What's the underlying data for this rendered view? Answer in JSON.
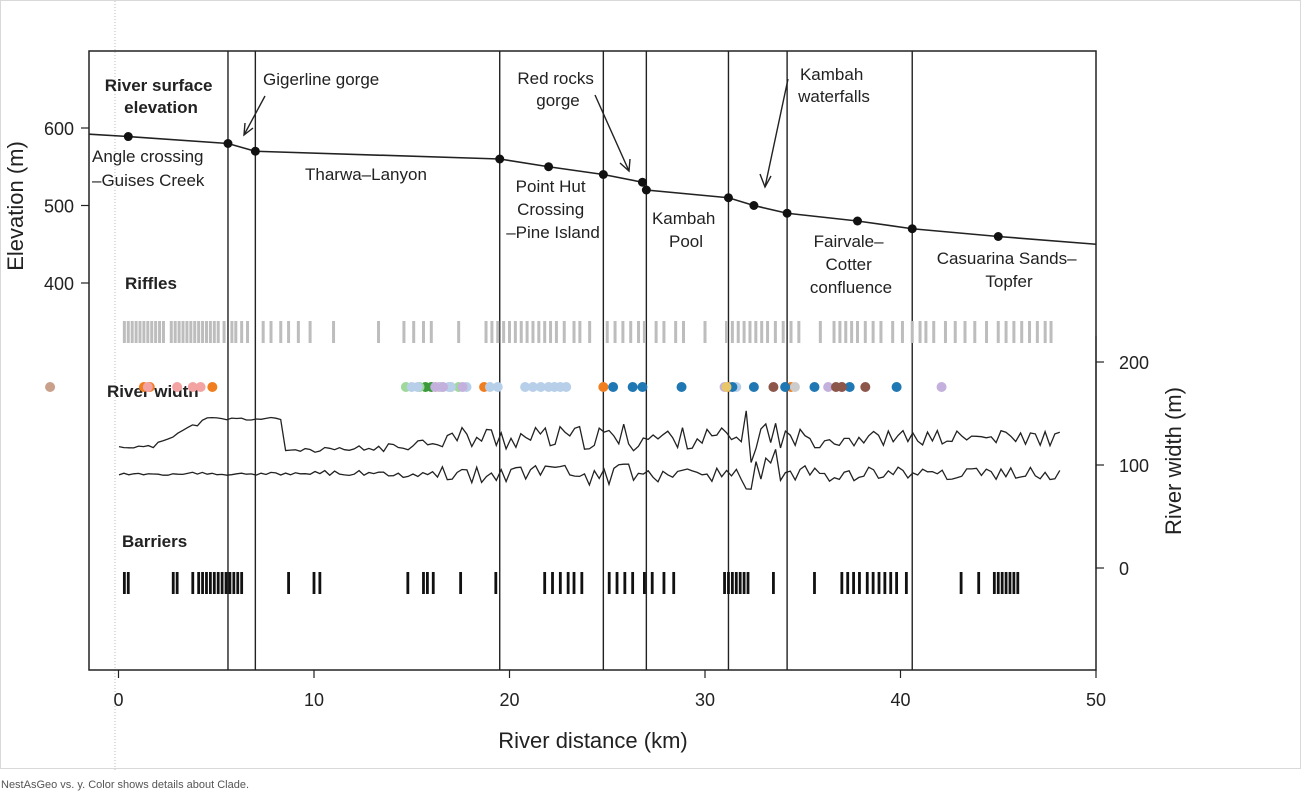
{
  "caption": "NestAsGeo vs. y.  Color shows details about Clade.",
  "chart_data": {
    "type": "line",
    "xlabel": "River distance (km)",
    "ylabel_left": "Elevation (m)",
    "ylabel_right": "River width (m)",
    "xlim": [
      -1.5,
      50
    ],
    "x_ticks": [
      0,
      10,
      20,
      30,
      40,
      50
    ],
    "y_left_ticks": [
      400,
      500,
      600
    ],
    "y_right_ticks": [
      0,
      100,
      200
    ],
    "elevation_series": {
      "x": [
        -1.5,
        0.5,
        5.6,
        7.0,
        19.5,
        22.0,
        24.8,
        26.8,
        27.0,
        31.2,
        32.5,
        34.2,
        37.8,
        40.6,
        45.0,
        50.0
      ],
      "y": [
        592,
        589,
        580,
        570,
        560,
        550,
        540,
        530,
        520,
        510,
        500,
        490,
        480,
        470,
        460,
        450
      ],
      "marker_x": [
        0.5,
        5.6,
        7.0,
        19.5,
        22.0,
        24.8,
        26.8,
        27.0,
        31.2,
        32.5,
        34.2,
        37.8,
        40.6,
        45.0
      ]
    },
    "section_boundaries_km": [
      5.6,
      7.0,
      19.5,
      24.8,
      27.0,
      31.2,
      34.2,
      40.6
    ],
    "annotations": {
      "river_surface": [
        "River surface",
        "elevation"
      ],
      "gigerline": "Gigerline gorge",
      "red_rocks": [
        "Red rocks",
        "gorge"
      ],
      "kambah_waterfalls": [
        "Kambah",
        "waterfalls"
      ],
      "angle_crossing": [
        "Angle crossing",
        "–Guises Creek"
      ],
      "tharwa": "Tharwa–Lanyon",
      "point_hut": [
        "Point Hut",
        "Crossing",
        "–Pine Island"
      ],
      "kambah_pool": [
        "Kambah",
        "Pool"
      ],
      "fairvale": [
        "Fairvale–",
        "Cotter",
        "confluence"
      ],
      "casuarina": [
        "Casuarina Sands–",
        "Topfer"
      ],
      "riffles": "Riffles",
      "river_width": "River width",
      "barriers": "Barriers"
    },
    "riffles_km": [
      0.3,
      0.5,
      0.7,
      0.9,
      1.1,
      1.3,
      1.5,
      1.7,
      1.9,
      2.1,
      2.3,
      2.7,
      2.9,
      3.1,
      3.3,
      3.5,
      3.7,
      3.9,
      4.1,
      4.3,
      4.5,
      4.7,
      4.9,
      5.1,
      5.4,
      5.8,
      6.0,
      6.3,
      6.6,
      7.4,
      7.8,
      8.3,
      8.7,
      9.2,
      9.8,
      11.0,
      13.3,
      14.6,
      15.1,
      15.6,
      16.0,
      17.4,
      18.8,
      19.1,
      19.4,
      19.7,
      20.0,
      20.3,
      20.6,
      20.9,
      21.2,
      21.5,
      21.8,
      22.1,
      22.4,
      22.8,
      23.3,
      23.6,
      24.1,
      25.0,
      25.4,
      25.8,
      26.2,
      26.6,
      26.9,
      27.5,
      27.9,
      28.5,
      28.9,
      30.0,
      31.1,
      31.4,
      31.7,
      32.0,
      32.3,
      32.6,
      32.9,
      33.2,
      33.6,
      34.0,
      34.4,
      34.8,
      35.9,
      36.6,
      36.9,
      37.2,
      37.5,
      37.8,
      38.2,
      38.6,
      39.0,
      39.6,
      40.1,
      40.6,
      41.0,
      41.3,
      41.7,
      42.3,
      42.8,
      43.3,
      43.8,
      44.4,
      45.0,
      45.4,
      45.8,
      46.2,
      46.6,
      47.0,
      47.4,
      47.7
    ],
    "barriers_km": [
      0.3,
      0.5,
      2.8,
      3.0,
      3.8,
      4.1,
      4.3,
      4.5,
      4.7,
      4.9,
      5.1,
      5.3,
      5.5,
      5.7,
      5.9,
      6.1,
      6.3,
      8.7,
      10.0,
      10.3,
      14.8,
      15.6,
      15.8,
      16.1,
      17.5,
      19.3,
      21.8,
      22.2,
      22.6,
      23.0,
      23.3,
      23.7,
      25.1,
      25.5,
      25.9,
      26.3,
      26.9,
      27.3,
      27.9,
      28.4,
      31.0,
      31.2,
      31.4,
      31.6,
      31.8,
      32.0,
      32.2,
      33.5,
      35.6,
      37.0,
      37.3,
      37.6,
      37.9,
      38.3,
      38.6,
      38.9,
      39.2,
      39.5,
      39.8,
      40.3,
      43.1,
      44.0,
      44.8,
      45.0,
      45.2,
      45.4,
      45.6,
      45.8,
      46.0
    ],
    "width_scatter": {
      "series": [
        {
          "color": "#c9a08a",
          "x": [
            -3.5
          ]
        },
        {
          "color": "#f07e1e",
          "x": [
            1.3,
            1.6,
            4.8,
            18.7,
            24.8,
            31.2,
            34.4
          ]
        },
        {
          "color": "#f4a3a3",
          "x": [
            1.5,
            3.0,
            3.8,
            4.2,
            16.4,
            17.0
          ]
        },
        {
          "color": "#3b9b3b",
          "x": [
            15.7,
            16.0
          ]
        },
        {
          "color": "#9ed89a",
          "x": [
            14.7,
            15.4,
            17.4
          ]
        },
        {
          "color": "#b7cfe8",
          "x": [
            15.0,
            15.3,
            16.5,
            16.9,
            17.0,
            17.8,
            19.0,
            19.4,
            20.8,
            21.2,
            21.6,
            22.0,
            22.3,
            22.6,
            22.9,
            31.6
          ]
        },
        {
          "color": "#c4b0dc",
          "x": [
            16.2,
            16.6,
            17.6,
            31.0,
            36.3,
            37.0,
            42.1
          ]
        },
        {
          "color": "#1f77b4",
          "x": [
            25.3,
            26.3,
            26.8,
            28.8,
            31.4,
            32.5,
            34.1,
            35.6,
            37.4,
            39.8
          ]
        },
        {
          "color": "#8c564b",
          "x": [
            33.5,
            36.7,
            37.0,
            38.2
          ]
        },
        {
          "color": "#e8c76b",
          "x": [
            31.1
          ]
        },
        {
          "color": "#cccccc",
          "x": [
            34.6
          ]
        }
      ]
    }
  }
}
